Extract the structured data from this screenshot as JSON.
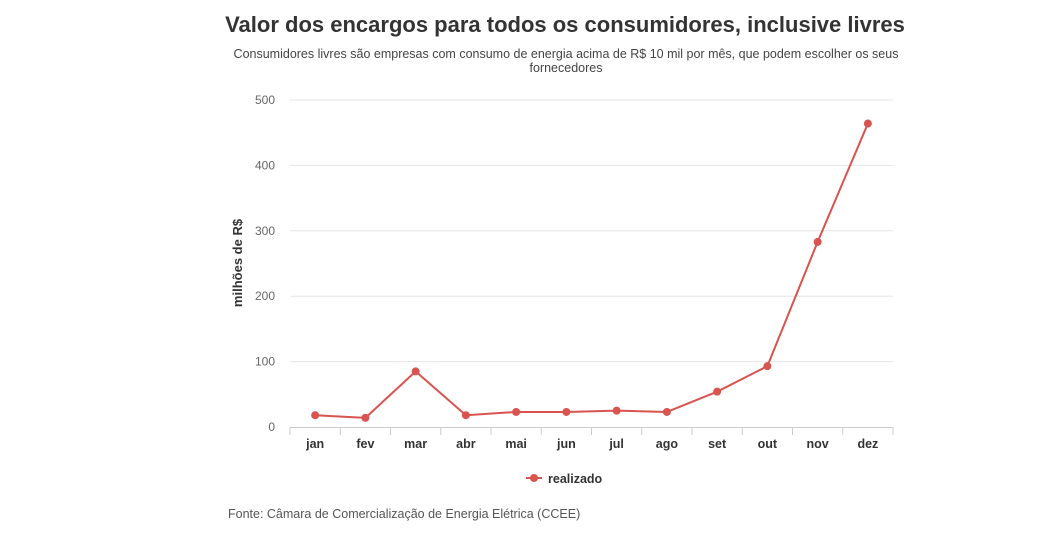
{
  "title": "Valor dos encargos para todos os consumidores, inclusive livres",
  "subtitle": "Consumidores livres são empresas com consumo de energia acima de R$ 10 mil por mês, que podem escolher os seus fornecedores",
  "source": "Fonte: Câmara de Comercialização de Energia Elétrica (CCEE)",
  "chart_data": {
    "type": "line",
    "title": "Valor dos encargos para todos os consumidores, inclusive livres",
    "subtitle": "Consumidores livres são empresas com consumo de energia acima de R$ 10 mil por mês, que podem escolher os seus fornecedores",
    "xlabel": "",
    "ylabel": "milhões de R$",
    "categories": [
      "jan",
      "fev",
      "mar",
      "abr",
      "mai",
      "jun",
      "jul",
      "ago",
      "set",
      "out",
      "nov",
      "dez"
    ],
    "series": [
      {
        "name": "realizado",
        "color": "#d9534f",
        "values": [
          18,
          14,
          85,
          18,
          23,
          23,
          25,
          23,
          54,
          93,
          283,
          464
        ]
      }
    ],
    "ylim": [
      0,
      500
    ],
    "yticks": [
      0,
      100,
      200,
      300,
      400,
      500
    ],
    "grid": true,
    "legend": "bottom-center"
  }
}
